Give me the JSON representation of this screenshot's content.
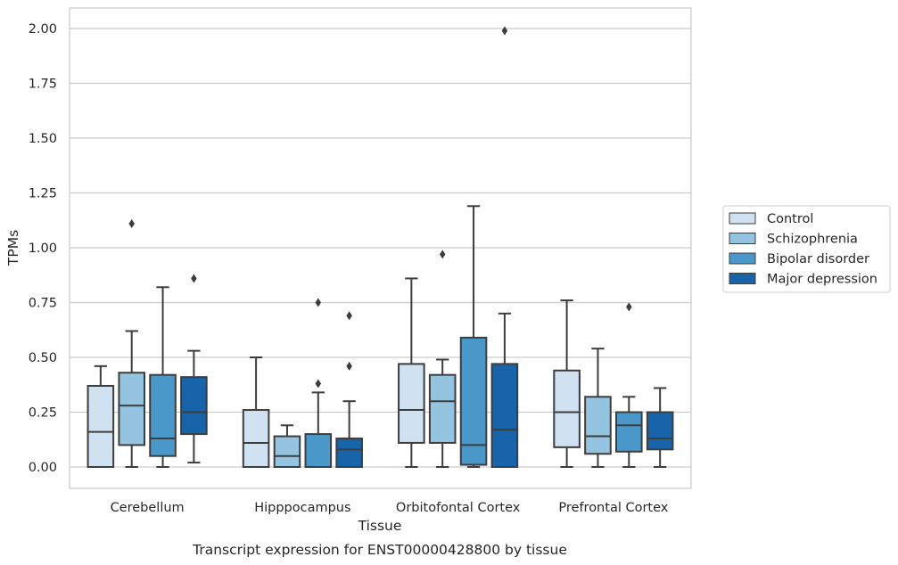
{
  "chart_data": {
    "type": "box",
    "title": "",
    "xlabel": "Tissue",
    "ylabel": "TPMs",
    "caption": "Transcript expression for ENST00000428800 by tissue",
    "ylim": [
      -0.1,
      2.09
    ],
    "yticks": [
      "0.00",
      "0.25",
      "0.50",
      "0.75",
      "1.00",
      "1.25",
      "1.50",
      "1.75",
      "2.00"
    ],
    "grid": true,
    "legend_position": "right",
    "categories": [
      "Cerebellum",
      "Hipppocampus",
      "Orbitofontal Cortex",
      "Prefrontal Cortex"
    ],
    "series": [
      {
        "name": "Control",
        "color": "#d0e1f2",
        "boxes": [
          {
            "q1": 0.0,
            "median": 0.16,
            "q3": 0.37,
            "whislo": 0.0,
            "whishi": 0.46,
            "fliers": []
          },
          {
            "q1": 0.0,
            "median": 0.11,
            "q3": 0.26,
            "whislo": 0.0,
            "whishi": 0.5,
            "fliers": []
          },
          {
            "q1": 0.11,
            "median": 0.26,
            "q3": 0.47,
            "whislo": 0.0,
            "whishi": 0.86,
            "fliers": []
          },
          {
            "q1": 0.09,
            "median": 0.25,
            "q3": 0.44,
            "whislo": 0.0,
            "whishi": 0.76,
            "fliers": []
          }
        ]
      },
      {
        "name": "Schizophrenia",
        "color": "#94c4df",
        "boxes": [
          {
            "q1": 0.1,
            "median": 0.28,
            "q3": 0.43,
            "whislo": 0.0,
            "whishi": 0.62,
            "fliers": [
              1.11
            ]
          },
          {
            "q1": 0.0,
            "median": 0.05,
            "q3": 0.14,
            "whislo": 0.0,
            "whishi": 0.19,
            "fliers": []
          },
          {
            "q1": 0.11,
            "median": 0.3,
            "q3": 0.42,
            "whislo": 0.0,
            "whishi": 0.49,
            "fliers": [
              0.97
            ]
          },
          {
            "q1": 0.06,
            "median": 0.14,
            "q3": 0.32,
            "whislo": 0.0,
            "whishi": 0.54,
            "fliers": []
          }
        ]
      },
      {
        "name": "Bipolar disorder",
        "color": "#4a98c9",
        "boxes": [
          {
            "q1": 0.05,
            "median": 0.13,
            "q3": 0.42,
            "whislo": 0.0,
            "whishi": 0.82,
            "fliers": []
          },
          {
            "q1": 0.0,
            "median": 0.0,
            "q3": 0.15,
            "whislo": 0.0,
            "whishi": 0.34,
            "fliers": [
              0.38,
              0.75
            ]
          },
          {
            "q1": 0.01,
            "median": 0.1,
            "q3": 0.59,
            "whislo": 0.0,
            "whishi": 1.19,
            "fliers": []
          },
          {
            "q1": 0.07,
            "median": 0.19,
            "q3": 0.25,
            "whislo": 0.0,
            "whishi": 0.32,
            "fliers": [
              0.73
            ]
          }
        ]
      },
      {
        "name": "Major depression",
        "color": "#1764ab",
        "boxes": [
          {
            "q1": 0.15,
            "median": 0.25,
            "q3": 0.41,
            "whislo": 0.02,
            "whishi": 0.53,
            "fliers": [
              0.86
            ]
          },
          {
            "q1": 0.0,
            "median": 0.08,
            "q3": 0.13,
            "whislo": 0.0,
            "whishi": 0.3,
            "fliers": [
              0.46,
              0.69
            ]
          },
          {
            "q1": 0.0,
            "median": 0.17,
            "q3": 0.47,
            "whislo": 0.0,
            "whishi": 0.7,
            "fliers": [
              1.99
            ]
          },
          {
            "q1": 0.08,
            "median": 0.13,
            "q3": 0.25,
            "whislo": 0.0,
            "whishi": 0.36,
            "fliers": []
          }
        ]
      }
    ]
  }
}
